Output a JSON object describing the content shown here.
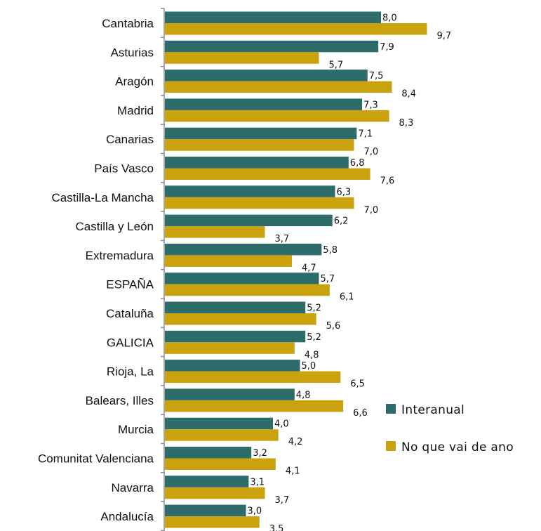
{
  "chart_data": {
    "type": "bar",
    "orientation": "horizontal",
    "categories": [
      "Cantabria",
      "Asturias",
      "Aragón",
      "Madrid",
      "Canarias",
      "País Vasco",
      "Castilla-La Mancha",
      "Castilla y León",
      "Extremadura",
      "ESPAÑA",
      "Cataluña",
      "GALICIA",
      "Rioja, La",
      "Balears, Illes",
      "Murcia",
      "Comunitat Valenciana",
      "Navarra",
      "Andalucía"
    ],
    "series": [
      {
        "name": "Interanual",
        "color": "#2E6B6B",
        "values": [
          8.0,
          7.9,
          7.5,
          7.3,
          7.1,
          6.8,
          6.3,
          6.2,
          5.8,
          5.7,
          5.2,
          5.2,
          5.0,
          4.8,
          4.0,
          3.2,
          3.1,
          3.0
        ],
        "labels": [
          "8,0",
          "7,9",
          "7,5",
          "7,3",
          "7,1",
          "6,8",
          "6,3",
          "6,2",
          "5,8",
          "5,7",
          "5,2",
          "5,2",
          "5,0",
          "4,8",
          "4,0",
          "3,2",
          "3,1",
          "3,0"
        ]
      },
      {
        "name": "No que vai de ano",
        "color": "#C9A20E",
        "values": [
          9.7,
          5.7,
          8.4,
          8.3,
          7.0,
          7.6,
          7.0,
          3.7,
          4.7,
          6.1,
          5.6,
          4.8,
          6.5,
          6.6,
          4.2,
          4.1,
          3.7,
          3.5
        ],
        "labels": [
          "9,7",
          "5,7",
          "8,4",
          "8,3",
          "7,0",
          "7,6",
          "7,0",
          "3,7",
          "4,7",
          "6,1",
          "5,6",
          "4,8",
          "6,5",
          "6,6",
          "4,2",
          "4,1",
          "3,7",
          "3,5"
        ]
      }
    ],
    "xlim": [
      0,
      10
    ],
    "grid": false,
    "legend_position": "right"
  }
}
